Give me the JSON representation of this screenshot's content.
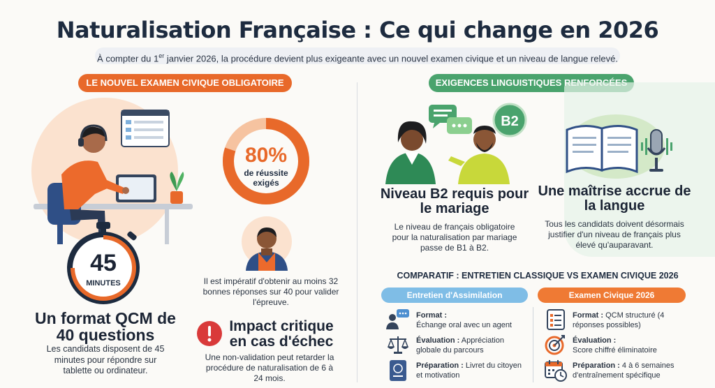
{
  "header": {
    "title": "Naturalisation Française : Ce qui change en 2026",
    "subtitle_pre": "À compter du 1",
    "subtitle_sup": "er",
    "subtitle_post": " janvier 2026, la procédure devient plus exigeante avec un nouvel examen civique et un niveau de langue relevé."
  },
  "left": {
    "section_label": "LE NOUVEL EXAMEN CIVIQUE OBLIGATOIRE",
    "timer": {
      "value": "45",
      "unit": "MINUTES"
    },
    "qcm": {
      "title": "Un format QCM de 40 questions",
      "text": "Les candidats disposent de 45 minutes pour répondre sur tablette ou ordinateur."
    },
    "ring": {
      "value": "80%",
      "label": "de réussite exigés",
      "fraction": 0.8
    },
    "requirement_text": "Il est impératif d'obtenir au moins 32 bonnes réponses sur 40 pour valider l'épreuve.",
    "impact": {
      "title": "Impact critique en cas d'échec",
      "text": "Une non-validation peut retarder la procédure de naturalisation de 6 à 24 mois."
    }
  },
  "right": {
    "section_label": "EXIGENCES LINGUISTIQUES RENFORCÉES",
    "badge": "B2",
    "b2": {
      "title": "Niveau B2 requis pour le mariage",
      "text": "Le niveau de français obligatoire pour la naturalisation par mariage passe de B1 à B2."
    },
    "mastery": {
      "title": "Une maîtrise accrue de la langue",
      "text": "Tous les candidats doivent désormais justifier d'un niveau de français plus élevé qu'auparavant."
    },
    "comparison": {
      "title": "COMPARATIF : ENTRETIEN CLASSIQUE VS EXAMEN CIVIQUE 2026",
      "col1": {
        "head": "Entretien d'Assimilation",
        "rows": [
          {
            "label": "Format :",
            "text": "Échange oral avec un agent",
            "icon": "chat-person-icon"
          },
          {
            "label": "Évaluation :",
            "text": "Appréciation globale du parcours",
            "icon": "scales-icon"
          },
          {
            "label": "Préparation :",
            "text": "Livret du citoyen et motivation",
            "icon": "booklet-icon"
          }
        ]
      },
      "col2": {
        "head": "Examen Civique 2026",
        "rows": [
          {
            "label": "Format :",
            "text": "QCM structuré (4 réponses possibles)",
            "icon": "checklist-icon"
          },
          {
            "label": "Évaluation :",
            "text": "Score chiffré éliminatoire",
            "icon": "target-icon"
          },
          {
            "label": "Préparation :",
            "text": "4 à 6 semaines d'entraînement spécifique",
            "icon": "calendar-clock-icon"
          }
        ]
      }
    }
  },
  "colors": {
    "orange": "#e8692a",
    "green": "#4aa36d",
    "blue_head": "#7fbde6",
    "orange_head": "#ef7a34",
    "navy": "#1d2b3f",
    "alert_red": "#d93a3a"
  }
}
